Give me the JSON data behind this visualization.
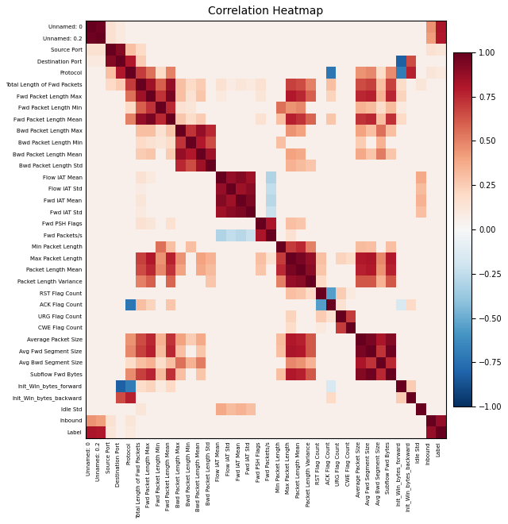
{
  "labels": [
    "Unnamed: 0",
    "Unnamed: 0.2",
    "Source Port",
    "Destination Port",
    "Protocol",
    "Total Length of Fwd Packets",
    "Fwd Packet Length Max",
    "Fwd Packet Length Min",
    "Fwd Packet Length Mean",
    "Bwd Packet Length Max",
    "Bwd Packet Length Min",
    "Bwd Packet Length Mean",
    "Bwd Packet Length Std",
    "Flow IAT Mean",
    "Flow IAT Std",
    "Fwd IAT Mean",
    "Fwd IAT Std",
    "Fwd PSH Flags",
    "Fwd Packets/s",
    "Min Packet Length",
    "Max Packet Length",
    "Packet Length Mean",
    "Packet Length Variance",
    "RST Flag Count",
    "ACK Flag Count",
    "URG Flag Count",
    "CWE Flag Count",
    "Average Packet Size",
    "Avg Fwd Segment Size",
    "Avg Bwd Segment Size",
    "Subflow Fwd Bytes",
    "Init_Win_bytes_forward",
    "Init_Win_bytes_backward",
    "Idle Std",
    "Inbound",
    "Label"
  ],
  "title": "Correlation Heatmap",
  "vmin": -1.0,
  "vmax": 1.0,
  "figsize": [
    6.4,
    6.6
  ],
  "dpi": 100,
  "title_fontsize": 10,
  "tick_fontsize": 5,
  "cbar_fontsize": 7
}
